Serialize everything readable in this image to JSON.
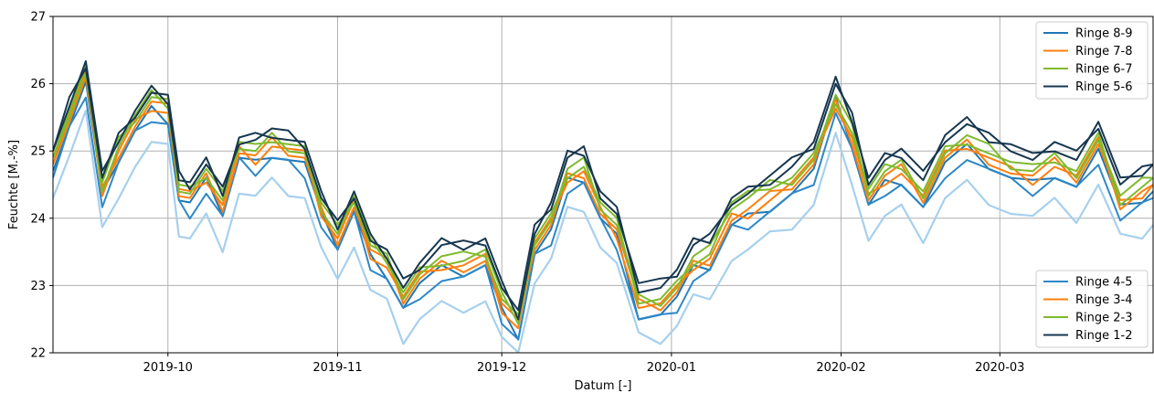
{
  "chart_data": {
    "type": "line",
    "xlabel": "Datum [-]",
    "ylabel": "Feuchte [M.-%]",
    "x_range": [
      "2019-09-10",
      "2020-03-29"
    ],
    "ylim": [
      22,
      27
    ],
    "grid": true,
    "x_ticks": [
      "2019-10",
      "2019-11",
      "2019-12",
      "2020-01",
      "2020-02",
      "2020-03"
    ],
    "y_ticks": [
      22,
      23,
      24,
      25,
      26,
      27
    ],
    "legends": [
      {
        "placement": "top-right",
        "entries": [
          "Ringe 8-9",
          "Ringe 7-8",
          "Ringe 6-7",
          "Ringe 5-6"
        ]
      },
      {
        "placement": "bottom-right",
        "entries": [
          "Ringe 4-5",
          "Ringe 3-4",
          "Ringe 2-3",
          "Ringe 1-2"
        ]
      }
    ],
    "x": [
      "2019-09-10",
      "2019-09-13",
      "2019-09-16",
      "2019-09-19",
      "2019-09-22",
      "2019-09-25",
      "2019-09-28",
      "2019-10-01",
      "2019-10-03",
      "2019-10-05",
      "2019-10-08",
      "2019-10-11",
      "2019-10-14",
      "2019-10-17",
      "2019-10-20",
      "2019-10-23",
      "2019-10-26",
      "2019-10-29",
      "2019-11-01",
      "2019-11-04",
      "2019-11-07",
      "2019-11-10",
      "2019-11-13",
      "2019-11-16",
      "2019-11-20",
      "2019-11-24",
      "2019-11-28",
      "2019-12-01",
      "2019-12-04",
      "2019-12-07",
      "2019-12-10",
      "2019-12-13",
      "2019-12-16",
      "2019-12-19",
      "2019-12-22",
      "2019-12-26",
      "2019-12-30",
      "2020-01-02",
      "2020-01-05",
      "2020-01-08",
      "2020-01-12",
      "2020-01-15",
      "2020-01-19",
      "2020-01-23",
      "2020-01-27",
      "2020-01-31",
      "2020-02-03",
      "2020-02-06",
      "2020-02-09",
      "2020-02-12",
      "2020-02-16",
      "2020-02-20",
      "2020-02-24",
      "2020-02-28",
      "2020-03-03",
      "2020-03-07",
      "2020-03-11",
      "2020-03-15",
      "2020-03-19",
      "2020-03-23",
      "2020-03-27",
      "2020-03-29"
    ],
    "series": [
      {
        "name": "Ringe 8-9",
        "color": "#1f77b4",
        "values": [
          24.7,
          25.4,
          26.0,
          24.3,
          24.9,
          25.3,
          25.6,
          25.5,
          24.3,
          24.2,
          24.5,
          24.1,
          24.9,
          24.8,
          25.0,
          24.9,
          24.8,
          24.0,
          23.6,
          24.1,
          23.4,
          23.2,
          22.7,
          23.0,
          23.2,
          23.2,
          23.3,
          22.6,
          22.3,
          23.5,
          23.8,
          24.5,
          24.6,
          24.0,
          23.7,
          22.6,
          22.6,
          22.8,
          23.2,
          23.3,
          23.9,
          24.0,
          24.2,
          24.4,
          24.7,
          25.7,
          25.1,
          24.2,
          24.5,
          24.6,
          24.2,
          24.8,
          25.0,
          24.8,
          24.6,
          24.5,
          24.7,
          24.5,
          25.0,
          24.1,
          24.3,
          24.4
        ]
      },
      {
        "name": "Ringe 7-8",
        "color": "#ff7f0e",
        "values": [
          24.8,
          25.5,
          26.1,
          24.4,
          25.0,
          25.4,
          25.7,
          25.6,
          24.4,
          24.3,
          24.6,
          24.2,
          25.0,
          24.9,
          25.1,
          25.0,
          24.9,
          24.1,
          23.7,
          24.2,
          23.5,
          23.3,
          22.8,
          23.1,
          23.3,
          23.3,
          23.4,
          22.7,
          22.4,
          23.6,
          23.9,
          24.6,
          24.7,
          24.1,
          23.8,
          22.7,
          22.7,
          22.9,
          23.3,
          23.4,
          24.0,
          24.1,
          24.3,
          24.5,
          24.8,
          25.7,
          25.2,
          24.3,
          24.6,
          24.7,
          24.3,
          24.9,
          25.1,
          24.9,
          24.7,
          24.6,
          24.8,
          24.6,
          25.1,
          24.2,
          24.4,
          24.5
        ]
      },
      {
        "name": "Ringe 6-7",
        "color": "#7fba2d",
        "values": [
          24.9,
          25.6,
          26.2,
          24.5,
          25.1,
          25.5,
          25.8,
          25.7,
          24.5,
          24.4,
          24.7,
          24.3,
          25.1,
          25.0,
          25.2,
          25.1,
          25.0,
          24.2,
          23.8,
          24.3,
          23.6,
          23.4,
          22.9,
          23.2,
          23.4,
          23.4,
          23.5,
          22.8,
          22.5,
          23.7,
          24.0,
          24.7,
          24.8,
          24.2,
          23.9,
          22.8,
          22.8,
          23.0,
          23.4,
          23.5,
          24.2,
          24.3,
          24.5,
          24.6,
          24.9,
          25.8,
          25.3,
          24.4,
          24.7,
          24.8,
          24.4,
          25.0,
          25.2,
          25.0,
          24.8,
          24.7,
          24.9,
          24.7,
          25.2,
          24.3,
          24.5,
          24.6
        ]
      },
      {
        "name": "Ringe 5-6",
        "color": "#17374f",
        "values": [
          25.0,
          25.7,
          26.3,
          24.6,
          25.2,
          25.6,
          25.9,
          25.8,
          24.6,
          24.5,
          24.8,
          24.4,
          25.2,
          25.2,
          25.3,
          25.2,
          25.1,
          24.3,
          23.9,
          24.4,
          23.7,
          23.5,
          23.0,
          23.3,
          23.6,
          23.6,
          23.7,
          23.0,
          22.6,
          23.8,
          24.2,
          24.9,
          25.0,
          24.4,
          24.1,
          23.0,
          23.0,
          23.2,
          23.6,
          23.7,
          24.3,
          24.4,
          24.6,
          24.8,
          25.1,
          26.0,
          25.5,
          24.6,
          24.9,
          25.0,
          24.6,
          25.2,
          25.4,
          25.2,
          25.1,
          24.9,
          25.1,
          24.9,
          25.4,
          24.5,
          24.7,
          24.8
        ]
      },
      {
        "name": "Ringe 4-5",
        "color": "#2c88c8",
        "values": [
          24.6,
          25.3,
          25.9,
          24.2,
          24.8,
          25.2,
          25.5,
          25.4,
          24.2,
          24.1,
          24.4,
          24.0,
          24.8,
          24.7,
          24.9,
          24.8,
          24.7,
          23.9,
          23.5,
          24.0,
          23.3,
          23.1,
          22.6,
          22.9,
          23.1,
          23.1,
          23.2,
          22.5,
          22.2,
          23.4,
          23.7,
          24.4,
          24.5,
          23.9,
          23.6,
          22.5,
          22.5,
          22.7,
          23.1,
          23.2,
          23.8,
          23.9,
          24.1,
          24.3,
          24.6,
          25.6,
          25.0,
          24.1,
          24.4,
          24.5,
          24.1,
          24.7,
          24.9,
          24.7,
          24.5,
          24.4,
          24.6,
          24.4,
          24.9,
          24.0,
          24.2,
          24.3
        ]
      },
      {
        "name": "Ringe 3-4",
        "color": "#ff7f0e",
        "values": [
          24.8,
          25.5,
          26.1,
          24.4,
          25.0,
          25.4,
          25.7,
          25.6,
          24.4,
          24.3,
          24.6,
          24.2,
          25.0,
          24.9,
          25.1,
          25.0,
          24.9,
          24.1,
          23.7,
          24.2,
          23.5,
          23.3,
          22.8,
          23.1,
          23.3,
          23.3,
          23.4,
          22.7,
          22.4,
          23.6,
          23.9,
          24.6,
          24.7,
          24.1,
          23.8,
          22.7,
          22.7,
          22.9,
          23.3,
          23.4,
          24.0,
          24.1,
          24.3,
          24.5,
          24.8,
          25.7,
          25.2,
          24.3,
          24.6,
          24.7,
          24.3,
          24.9,
          25.1,
          24.9,
          24.7,
          24.6,
          24.8,
          24.6,
          25.1,
          24.2,
          24.4,
          24.5
        ]
      },
      {
        "name": "Ringe 2-3",
        "color": "#7fba2d",
        "values": [
          24.9,
          25.6,
          26.2,
          24.5,
          25.1,
          25.5,
          25.8,
          25.7,
          24.5,
          24.4,
          24.7,
          24.3,
          25.1,
          25.0,
          25.2,
          25.1,
          25.0,
          24.2,
          23.8,
          24.3,
          23.6,
          23.4,
          22.9,
          23.2,
          23.4,
          23.4,
          23.5,
          22.8,
          22.5,
          23.7,
          24.0,
          24.7,
          24.8,
          24.2,
          23.9,
          22.8,
          22.8,
          23.0,
          23.4,
          23.5,
          24.2,
          24.3,
          24.5,
          24.6,
          24.9,
          25.8,
          25.3,
          24.4,
          24.7,
          24.8,
          24.4,
          25.0,
          25.2,
          25.0,
          24.8,
          24.7,
          24.9,
          24.7,
          25.2,
          24.3,
          24.5,
          24.6
        ]
      },
      {
        "name": "Ringe 1-2",
        "color": "#17374f",
        "values": [
          25.0,
          25.7,
          26.3,
          24.6,
          25.2,
          25.6,
          25.9,
          25.8,
          24.6,
          24.5,
          24.8,
          24.4,
          25.2,
          25.2,
          25.3,
          25.2,
          25.1,
          24.3,
          23.9,
          24.4,
          23.7,
          23.5,
          23.0,
          23.3,
          23.6,
          23.6,
          23.7,
          23.0,
          22.6,
          23.8,
          24.2,
          24.9,
          25.0,
          24.4,
          24.1,
          23.0,
          23.0,
          23.2,
          23.6,
          23.7,
          24.3,
          24.4,
          24.6,
          24.8,
          25.1,
          26.0,
          25.5,
          24.6,
          24.9,
          25.0,
          24.6,
          25.2,
          25.4,
          25.2,
          25.1,
          24.9,
          25.1,
          24.9,
          25.4,
          24.5,
          24.7,
          24.8
        ]
      },
      {
        "color": "#a6d0ee",
        "values": [
          24.3,
          25.0,
          25.6,
          23.8,
          24.4,
          24.8,
          25.1,
          25.0,
          23.8,
          23.7,
          24.0,
          23.6,
          24.4,
          24.3,
          24.5,
          24.4,
          24.3,
          23.5,
          23.2,
          23.6,
          22.9,
          22.7,
          22.2,
          22.5,
          22.7,
          22.7,
          22.8,
          22.2,
          21.9,
          23.1,
          23.4,
          24.1,
          24.2,
          23.6,
          23.3,
          22.2,
          22.2,
          22.4,
          22.8,
          22.9,
          23.4,
          23.5,
          23.7,
          23.9,
          24.2,
          25.2,
          24.6,
          23.7,
          24.0,
          24.1,
          23.7,
          24.3,
          24.5,
          24.3,
          24.1,
          24.0,
          24.2,
          24.0,
          24.5,
          23.7,
          23.8,
          23.9
        ]
      }
    ]
  }
}
